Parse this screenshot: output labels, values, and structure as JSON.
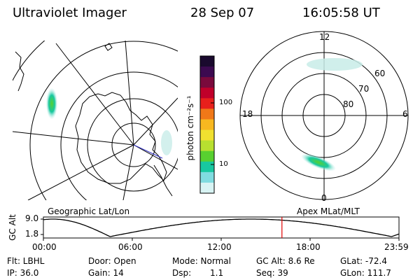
{
  "header": {
    "instrument": "Ultraviolet Imager",
    "date": "28 Sep 07",
    "time": "16:05:58 UT"
  },
  "left_map": {
    "label": "Geographic Lat/Lon"
  },
  "right_map": {
    "label": "Apex MLat/MLT",
    "mlt_labels": {
      "top": "12",
      "left": "18",
      "right": "6",
      "bottom": "0"
    },
    "lat_labels": [
      "60",
      "70",
      "80"
    ]
  },
  "colorbar": {
    "unit_label": "photon cm⁻²s⁻¹",
    "ticks": [
      "100",
      "10"
    ],
    "colors": [
      "#1a0a2e",
      "#3c0a50",
      "#7a0a3c",
      "#c0002a",
      "#e8201c",
      "#f07818",
      "#f8b820",
      "#f0e030",
      "#b8e030",
      "#58d030",
      "#18c8a0",
      "#80dce0",
      "#d8f4f4"
    ]
  },
  "altitude_plot": {
    "ylabel": "GC Alt",
    "yticks": [
      "9.0",
      "1.8"
    ],
    "xticks": [
      "00:00",
      "06:00",
      "12:00",
      "18:00",
      "23:59"
    ],
    "current_hour": 16.1
  },
  "status": {
    "filter": "Flt: LBHL",
    "ip": "IP: 36.0",
    "door": "Door: Open",
    "gain": "Gain: 14",
    "mode": "Mode: Normal",
    "dsp_label": "Dsp:",
    "dsp_value": "1.1",
    "gc_alt": "GC Alt: 8.6 Re",
    "seq": "Seq: 39",
    "glat": "GLat: -72.4",
    "glon": "GLon: 111.7"
  }
}
